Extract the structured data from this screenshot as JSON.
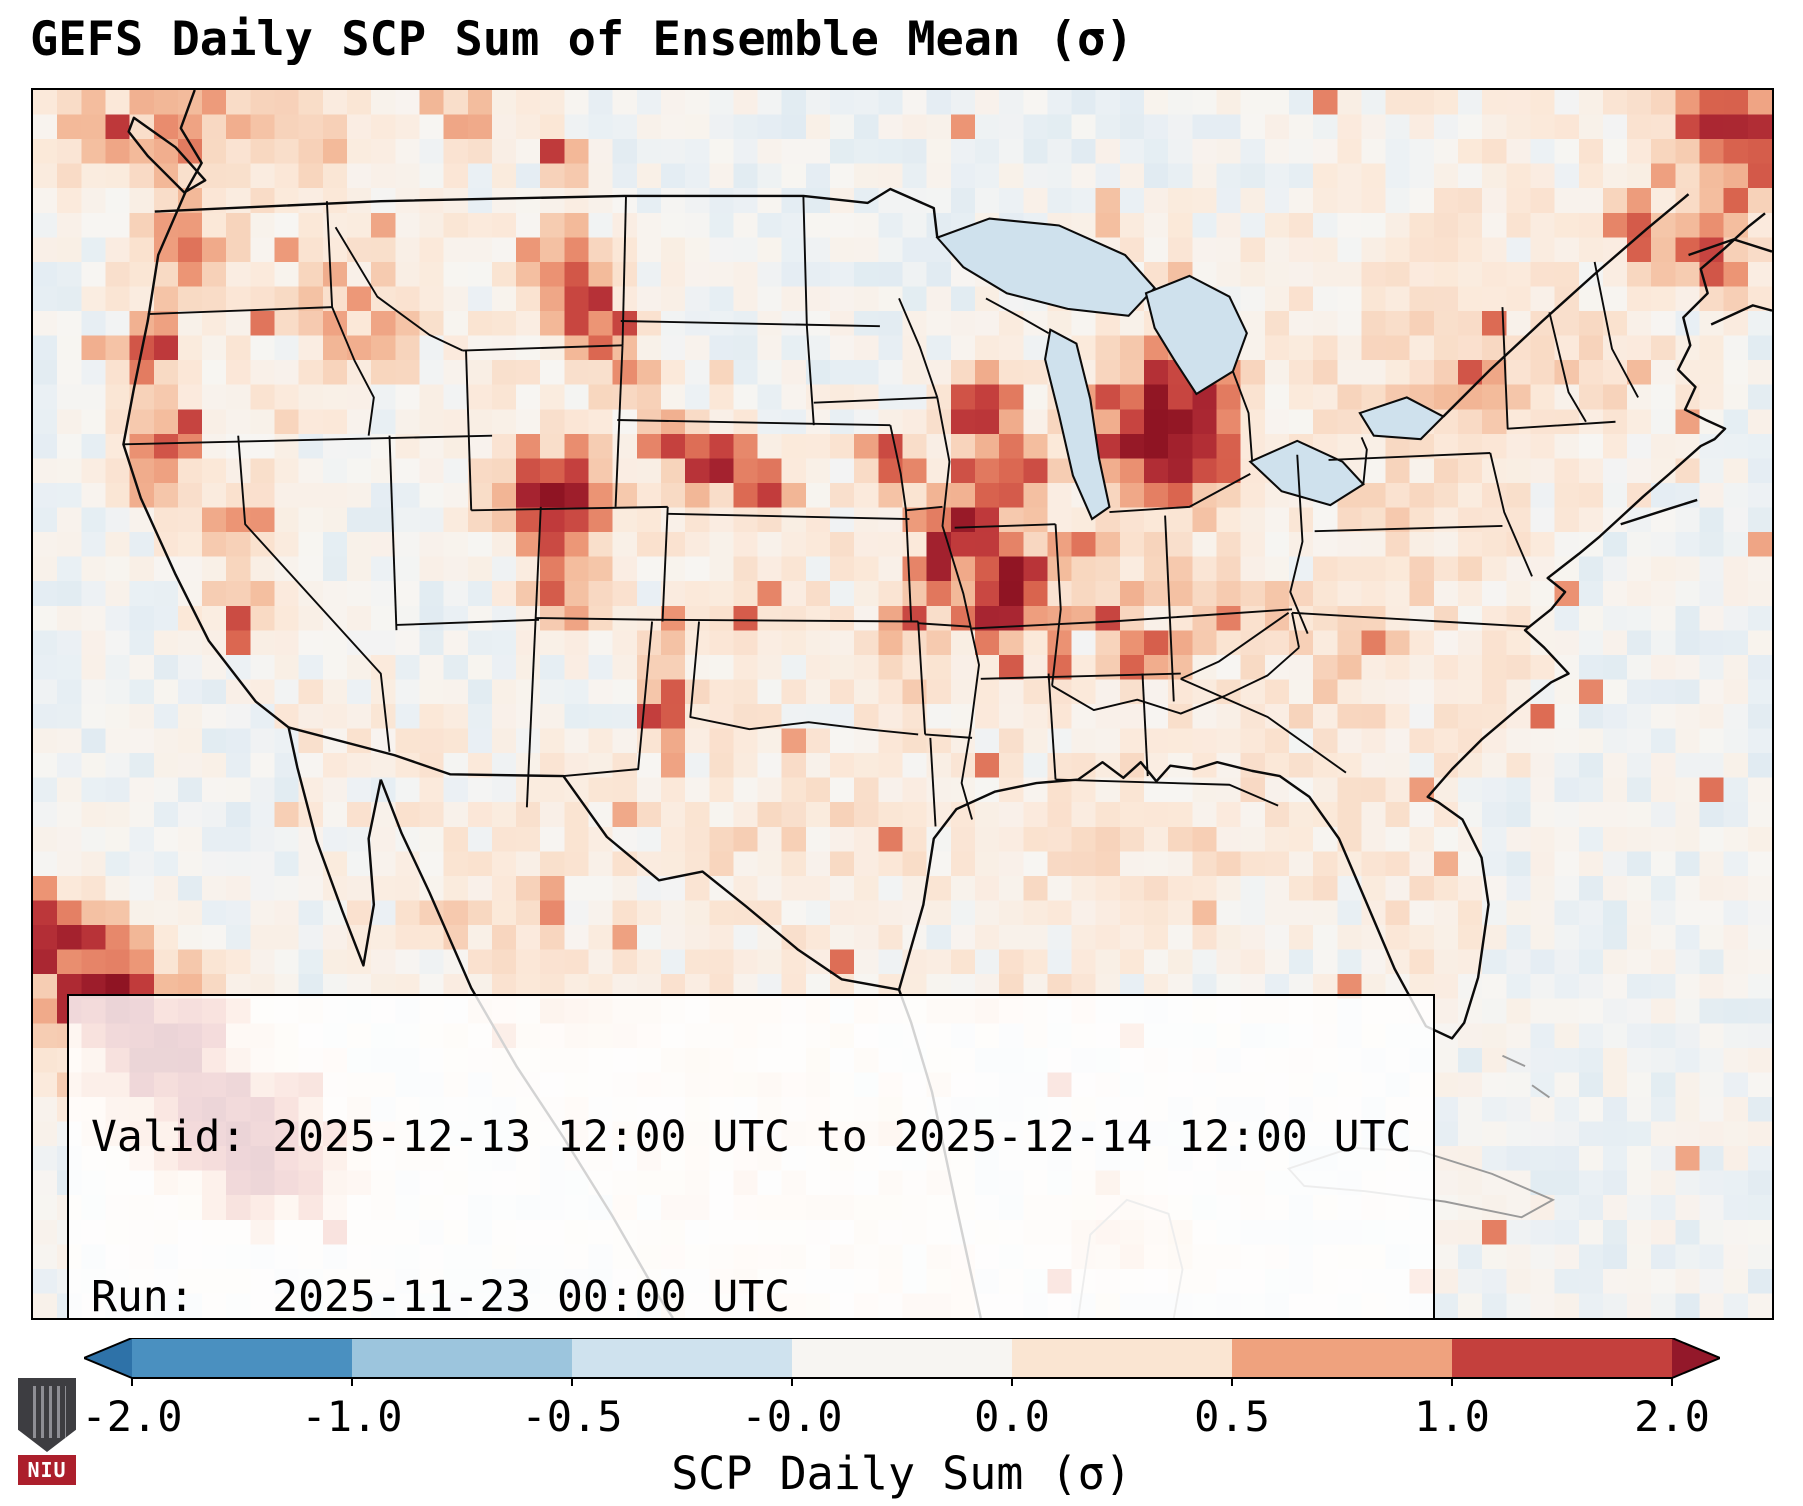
{
  "figure": {
    "title": "GEFS Daily SCP Sum of Ensemble Mean (σ)",
    "background": "#ffffff"
  },
  "info_box": {
    "valid_line": "Valid: 2025-12-13 12:00 UTC to 2025-12-14 12:00 UTC",
    "run_line": "Run:   2025-11-23 00:00 UTC"
  },
  "logo": {
    "text": "NIU",
    "banner_color": "#ac1f2c",
    "shield_color": "#3d3d41"
  },
  "chart_data": {
    "type": "heatmap",
    "title": "GEFS Daily SCP Sum of Ensemble Mean (σ)",
    "valid": "2025-12-13 12:00 UTC to 2025-12-14 12:00 UTC",
    "run": "2025-11-23 00:00 UTC",
    "colorbar": {
      "label": "SCP Daily Sum (σ)",
      "ticks": [
        "-2.0",
        "-1.0",
        "-0.5",
        "-0.0",
        "0.0",
        "0.5",
        "1.0",
        "2.0"
      ],
      "segment_colors": [
        "#4a90c0",
        "#9cc5dd",
        "#cfe2ee",
        "#f7f5f2",
        "#fae5d2",
        "#efa27e",
        "#c4403d"
      ],
      "under_color": "#2e72a8",
      "over_color": "#93182a",
      "extend": "both",
      "orientation": "horizontal",
      "range_sigma": [
        -2.0,
        2.0
      ]
    },
    "style": {
      "water_color": "#cfe1ed",
      "boundary_color": "#0b0b0b",
      "foreign_boundary_color": "#9a9a9a",
      "frame_color": "#000000",
      "info_box_bg": "rgba(255,255,255,0.82)"
    },
    "colormap_stops": [
      [
        -2.6,
        "#27679e"
      ],
      [
        -2.0,
        "#3a7cb0"
      ],
      [
        -1.2,
        "#7fb2d4"
      ],
      [
        -0.6,
        "#b9d6e7"
      ],
      [
        -0.25,
        "#d3e4ee"
      ],
      [
        -0.05,
        "#eaf0f4"
      ],
      [
        0.02,
        "#f7f5f2"
      ],
      [
        0.25,
        "#fbe9da"
      ],
      [
        0.5,
        "#f8d7c0"
      ],
      [
        0.8,
        "#f3ba9a"
      ],
      [
        1.1,
        "#ec9575"
      ],
      [
        1.5,
        "#da654f"
      ],
      [
        1.9,
        "#c23c3c"
      ],
      [
        2.3,
        "#a82531"
      ],
      [
        2.8,
        "#8f1423"
      ]
    ],
    "grid": {
      "cols": 72,
      "rows": 50,
      "noise_seed": 11,
      "ocean_value": -0.35,
      "land_value": 0.18,
      "noise_base": 0.13,
      "noise_scale": 0.5,
      "spike_threshold": 0.96,
      "spike_max": 1.3
    },
    "land_polygon": [
      [
        0.093,
        0
      ],
      [
        0.085,
        0.031
      ],
      [
        0.097,
        0.059
      ],
      [
        0.088,
        0.082
      ],
      [
        0.072,
        0.134
      ],
      [
        0.066,
        0.188
      ],
      [
        0.058,
        0.243
      ],
      [
        0.052,
        0.289
      ],
      [
        0.062,
        0.332
      ],
      [
        0.082,
        0.395
      ],
      [
        0.101,
        0.448
      ],
      [
        0.128,
        0.498
      ],
      [
        0.147,
        0.519
      ],
      [
        0.152,
        0.552
      ],
      [
        0.163,
        0.611
      ],
      [
        0.178,
        0.669
      ],
      [
        0.19,
        0.713
      ],
      [
        0.196,
        0.663
      ],
      [
        0.193,
        0.61
      ],
      [
        0.2,
        0.562
      ],
      [
        0.212,
        0.605
      ],
      [
        0.228,
        0.653
      ],
      [
        0.252,
        0.731
      ],
      [
        0.278,
        0.795
      ],
      [
        0.305,
        0.853
      ],
      [
        0.333,
        0.917
      ],
      [
        0.36,
        0.983
      ],
      [
        0.368,
        1
      ],
      [
        0.545,
        1
      ],
      [
        0.531,
        0.909
      ],
      [
        0.517,
        0.816
      ],
      [
        0.505,
        0.76
      ],
      [
        0.498,
        0.733
      ],
      [
        0.512,
        0.663
      ],
      [
        0.518,
        0.61
      ],
      [
        0.531,
        0.586
      ],
      [
        0.553,
        0.571
      ],
      [
        0.577,
        0.564
      ],
      [
        0.601,
        0.561
      ],
      [
        0.615,
        0.547
      ],
      [
        0.627,
        0.56
      ],
      [
        0.637,
        0.547
      ],
      [
        0.646,
        0.563
      ],
      [
        0.654,
        0.55
      ],
      [
        0.668,
        0.553
      ],
      [
        0.681,
        0.547
      ],
      [
        0.701,
        0.554
      ],
      [
        0.717,
        0.559
      ],
      [
        0.734,
        0.576
      ],
      [
        0.751,
        0.61
      ],
      [
        0.766,
        0.659
      ],
      [
        0.783,
        0.716
      ],
      [
        0.801,
        0.762
      ],
      [
        0.816,
        0.772
      ],
      [
        0.823,
        0.759
      ],
      [
        0.831,
        0.723
      ],
      [
        0.837,
        0.663
      ],
      [
        0.833,
        0.625
      ],
      [
        0.822,
        0.594
      ],
      [
        0.808,
        0.58
      ],
      [
        0.802,
        0.576
      ],
      [
        0.816,
        0.553
      ],
      [
        0.833,
        0.529
      ],
      [
        0.853,
        0.505
      ],
      [
        0.873,
        0.482
      ],
      [
        0.883,
        0.475
      ],
      [
        0.869,
        0.454
      ],
      [
        0.858,
        0.44
      ],
      [
        0.873,
        0.423
      ],
      [
        0.881,
        0.409
      ],
      [
        0.871,
        0.397
      ],
      [
        0.889,
        0.378
      ],
      [
        0.901,
        0.363
      ],
      [
        0.913,
        0.348
      ],
      [
        0.926,
        0.331
      ],
      [
        0.941,
        0.313
      ],
      [
        0.959,
        0.29
      ],
      [
        0.967,
        0.284
      ],
      [
        0.973,
        0.276
      ],
      [
        0.962,
        0.269
      ],
      [
        0.95,
        0.26
      ],
      [
        0.956,
        0.242
      ],
      [
        0.946,
        0.228
      ],
      [
        0.953,
        0.208
      ],
      [
        0.949,
        0.185
      ],
      [
        0.963,
        0.165
      ],
      [
        0.959,
        0.146
      ],
      [
        0.973,
        0.129
      ],
      [
        0.986,
        0.112
      ],
      [
        0.996,
        0.1
      ],
      [
        1,
        0.096
      ],
      [
        1,
        0
      ]
    ],
    "regions": [
      {
        "n": "canada-prairies-light",
        "t": "cool",
        "x": 0.45,
        "y": 0.057,
        "rx": 0.15,
        "ry": 0.07,
        "v": -0.15
      },
      {
        "n": "canada-top-center-light",
        "t": "cool",
        "x": 0.62,
        "y": 0.028,
        "rx": 0.12,
        "ry": 0.05,
        "v": -0.15
      },
      {
        "n": "minnesota-dakotas-light",
        "t": "cool",
        "x": 0.47,
        "y": 0.17,
        "rx": 0.08,
        "ry": 0.07,
        "v": -0.2
      },
      {
        "n": "great-basin-light",
        "t": "cool",
        "x": 0.2,
        "y": 0.368,
        "rx": 0.07,
        "ry": 0.08,
        "v": -0.15
      },
      {
        "n": "four-corners-light",
        "t": "cool",
        "x": 0.29,
        "y": 0.467,
        "rx": 0.06,
        "ry": 0.06,
        "v": -0.1
      },
      {
        "n": "gulf-of-mexico-light",
        "t": "cool",
        "x": 0.62,
        "y": 0.792,
        "rx": 0.09,
        "ry": 0.05,
        "v": -0.3
      },
      {
        "n": "atlantic-blue-patch-north",
        "t": "cool",
        "x": 0.915,
        "y": 0.438,
        "rx": 0.025,
        "ry": 0.04,
        "v": -1.15
      },
      {
        "n": "atlantic-blue-patch-south",
        "t": "cool",
        "x": 0.845,
        "y": 0.608,
        "rx": 0.018,
        "ry": 0.035,
        "v": -1.0
      },
      {
        "n": "southwest-corner-light",
        "t": "cool",
        "x": 0.034,
        "y": 0.959,
        "rx": 0.05,
        "ry": 0.035,
        "v": 0.0
      },
      {
        "n": "bc-coast-scatter",
        "t": "hot",
        "x": 0.09,
        "y": 0.035,
        "rx": 0.07,
        "ry": 0.05,
        "v": 1.1
      },
      {
        "n": "washington-coast",
        "t": "hot",
        "x": 0.085,
        "y": 0.127,
        "rx": 0.03,
        "ry": 0.05,
        "v": 0.9
      },
      {
        "n": "oregon-red-spot",
        "t": "hot",
        "x": 0.07,
        "y": 0.212,
        "rx": 0.018,
        "ry": 0.028,
        "v": 1.5
      },
      {
        "n": "norcal-coast",
        "t": "hot",
        "x": 0.075,
        "y": 0.297,
        "rx": 0.022,
        "ry": 0.045,
        "v": 1.2
      },
      {
        "n": "sierra-nevada",
        "t": "hot",
        "x": 0.115,
        "y": 0.354,
        "rx": 0.018,
        "ry": 0.04,
        "v": 1.0
      },
      {
        "n": "socal-coast",
        "t": "hot",
        "x": 0.125,
        "y": 0.424,
        "rx": 0.025,
        "ry": 0.03,
        "v": 0.8
      },
      {
        "n": "idaho-scatter",
        "t": "hot",
        "x": 0.185,
        "y": 0.184,
        "rx": 0.035,
        "ry": 0.045,
        "v": 0.8
      },
      {
        "n": "montana-top-spot-west",
        "t": "hot",
        "x": 0.25,
        "y": 0.028,
        "rx": 0.015,
        "ry": 0.018,
        "v": 1.7
      },
      {
        "n": "montana-top-spot-east",
        "t": "hot",
        "x": 0.305,
        "y": 0.054,
        "rx": 0.012,
        "ry": 0.015,
        "v": 2.0
      },
      {
        "n": "montana-streak-north",
        "t": "hot",
        "x": 0.305,
        "y": 0.141,
        "rx": 0.018,
        "ry": 0.028,
        "v": 1.6
      },
      {
        "n": "montana-streak-mid",
        "t": "hot",
        "x": 0.318,
        "y": 0.17,
        "rx": 0.02,
        "ry": 0.032,
        "v": 1.9
      },
      {
        "n": "montana-streak-south",
        "t": "hot",
        "x": 0.33,
        "y": 0.2,
        "rx": 0.018,
        "ry": 0.025,
        "v": 1.7
      },
      {
        "n": "bighorn-spot",
        "t": "hot",
        "x": 0.338,
        "y": 0.233,
        "rx": 0.015,
        "ry": 0.02,
        "v": 1.6
      },
      {
        "n": "wyoming-colorado-blob",
        "t": "hot",
        "x": 0.3,
        "y": 0.335,
        "rx": 0.028,
        "ry": 0.04,
        "v": 2.7
      },
      {
        "n": "colorado-front-range",
        "t": "hot",
        "x": 0.31,
        "y": 0.403,
        "rx": 0.022,
        "ry": 0.028,
        "v": 1.4
      },
      {
        "n": "nebraska-streak-west",
        "t": "hot",
        "x": 0.365,
        "y": 0.29,
        "rx": 0.016,
        "ry": 0.018,
        "v": 1.7
      },
      {
        "n": "nebraska-streak-mid",
        "t": "hot",
        "x": 0.39,
        "y": 0.304,
        "rx": 0.022,
        "ry": 0.022,
        "v": 2.2
      },
      {
        "n": "nebraska-streak-east",
        "t": "hot",
        "x": 0.42,
        "y": 0.322,
        "rx": 0.018,
        "ry": 0.018,
        "v": 2.0
      },
      {
        "n": "iowa-spot",
        "t": "hot",
        "x": 0.495,
        "y": 0.304,
        "rx": 0.018,
        "ry": 0.02,
        "v": 1.8
      },
      {
        "n": "wisconsin-spot-north",
        "t": "hot",
        "x": 0.545,
        "y": 0.262,
        "rx": 0.022,
        "ry": 0.028,
        "v": 1.8
      },
      {
        "n": "wisconsin-spot-south",
        "t": "hot",
        "x": 0.56,
        "y": 0.318,
        "rx": 0.022,
        "ry": 0.028,
        "v": 2.1
      },
      {
        "n": "michigan-blob",
        "t": "hot",
        "x": 0.652,
        "y": 0.276,
        "rx": 0.04,
        "ry": 0.055,
        "v": 2.9
      },
      {
        "n": "illinois-blob",
        "t": "hot",
        "x": 0.56,
        "y": 0.41,
        "rx": 0.026,
        "ry": 0.04,
        "v": 2.7
      },
      {
        "n": "missouri-streak-northeast",
        "t": "hot",
        "x": 0.533,
        "y": 0.361,
        "rx": 0.022,
        "ry": 0.03,
        "v": 2.6
      },
      {
        "n": "missouri-streak-center",
        "t": "hot",
        "x": 0.52,
        "y": 0.396,
        "rx": 0.02,
        "ry": 0.025,
        "v": 2.4
      },
      {
        "n": "missouri-streak-southwest",
        "t": "hot",
        "x": 0.503,
        "y": 0.438,
        "rx": 0.018,
        "ry": 0.02,
        "v": 1.5
      },
      {
        "n": "midwest-base",
        "t": "hot",
        "x": 0.64,
        "y": 0.396,
        "rx": 0.06,
        "ry": 0.06,
        "v": 0.4
      },
      {
        "n": "indiana-north-spot",
        "t": "hot",
        "x": 0.6,
        "y": 0.382,
        "rx": 0.016,
        "ry": 0.02,
        "v": 1.3
      },
      {
        "n": "indiana-kentucky-spot",
        "t": "hot",
        "x": 0.62,
        "y": 0.424,
        "rx": 0.016,
        "ry": 0.02,
        "v": 1.5
      },
      {
        "n": "kentucky-spot",
        "t": "hot",
        "x": 0.64,
        "y": 0.46,
        "rx": 0.02,
        "ry": 0.02,
        "v": 1.7
      },
      {
        "n": "ohio-valley-scatter",
        "t": "hot",
        "x": 0.69,
        "y": 0.424,
        "rx": 0.04,
        "ry": 0.04,
        "v": 0.8
      },
      {
        "n": "appalachia-scatter",
        "t": "hot",
        "x": 0.76,
        "y": 0.467,
        "rx": 0.05,
        "ry": 0.06,
        "v": 0.5
      },
      {
        "n": "texas-panhandle-streak",
        "t": "hot",
        "x": 0.365,
        "y": 0.502,
        "rx": 0.012,
        "ry": 0.04,
        "v": 2.2
      },
      {
        "n": "texas-base",
        "t": "hot",
        "x": 0.43,
        "y": 0.608,
        "rx": 0.12,
        "ry": 0.08,
        "v": 0.32
      },
      {
        "n": "plains-base",
        "t": "hot",
        "x": 0.42,
        "y": 0.41,
        "rx": 0.09,
        "ry": 0.09,
        "v": 0.22
      },
      {
        "n": "arkansas-base",
        "t": "hot",
        "x": 0.51,
        "y": 0.481,
        "rx": 0.04,
        "ry": 0.04,
        "v": 0.35
      },
      {
        "n": "southeast-base",
        "t": "hot",
        "x": 0.65,
        "y": 0.608,
        "rx": 0.1,
        "ry": 0.09,
        "v": 0.35
      },
      {
        "n": "carolinas-base",
        "t": "hot",
        "x": 0.76,
        "y": 0.509,
        "rx": 0.06,
        "ry": 0.05,
        "v": 0.35
      },
      {
        "n": "east-coast-base",
        "t": "hot",
        "x": 0.8,
        "y": 0.396,
        "rx": 0.05,
        "ry": 0.07,
        "v": 0.35
      },
      {
        "n": "pa-ny-base",
        "t": "hot",
        "x": 0.79,
        "y": 0.332,
        "rx": 0.05,
        "ry": 0.05,
        "v": 0.45
      },
      {
        "n": "northeast-scatter",
        "t": "hot",
        "x": 0.81,
        "y": 0.24,
        "rx": 0.08,
        "ry": 0.07,
        "v": 0.55
      },
      {
        "n": "new-england-coast",
        "t": "hot",
        "x": 0.9,
        "y": 0.226,
        "rx": 0.045,
        "ry": 0.045,
        "v": 0.6
      },
      {
        "n": "adirondack-spot",
        "t": "hot",
        "x": 0.83,
        "y": 0.226,
        "rx": 0.016,
        "ry": 0.02,
        "v": 1.2
      },
      {
        "n": "st-lawrence-spot",
        "t": "hot",
        "x": 0.929,
        "y": 0.115,
        "rx": 0.025,
        "ry": 0.03,
        "v": 1.3
      },
      {
        "n": "maritimes-spot",
        "t": "hot",
        "x": 0.965,
        "y": 0.135,
        "rx": 0.025,
        "ry": 0.03,
        "v": 1.5
      },
      {
        "n": "quebec-corner-blob",
        "t": "hot",
        "x": 0.98,
        "y": 0.034,
        "rx": 0.04,
        "ry": 0.045,
        "v": 2.0
      },
      {
        "n": "florida-base",
        "t": "hot",
        "x": 0.795,
        "y": 0.679,
        "rx": 0.025,
        "ry": 0.055,
        "v": 0.3
      },
      {
        "n": "gulf-coast-patch-west",
        "t": "hot",
        "x": 0.56,
        "y": 0.735,
        "rx": 0.04,
        "ry": 0.03,
        "v": 0.4
      },
      {
        "n": "gulf-coast-patch-east",
        "t": "hot",
        "x": 0.64,
        "y": 0.665,
        "rx": 0.04,
        "ry": 0.03,
        "v": 0.3
      },
      {
        "n": "louisiana-coast-patch",
        "t": "hot",
        "x": 0.585,
        "y": 0.651,
        "rx": 0.03,
        "ry": 0.025,
        "v": 0.35
      },
      {
        "n": "mexico-interior-patch",
        "t": "hot",
        "x": 0.3,
        "y": 0.735,
        "rx": 0.05,
        "ry": 0.06,
        "v": 0.45
      },
      {
        "n": "mexico-north-patch",
        "t": "hot",
        "x": 0.25,
        "y": 0.665,
        "rx": 0.05,
        "ry": 0.06,
        "v": 0.35
      },
      {
        "n": "yucatan-patch",
        "t": "hot",
        "x": 0.63,
        "y": 0.933,
        "rx": 0.04,
        "ry": 0.04,
        "v": 0.4
      },
      {
        "n": "pacific-band-nw",
        "t": "hot",
        "x": 0.017,
        "y": 0.692,
        "rx": 0.03,
        "ry": 0.035,
        "v": 2.3
      },
      {
        "n": "pacific-band-a",
        "t": "hot",
        "x": 0.045,
        "y": 0.74,
        "rx": 0.035,
        "ry": 0.04,
        "v": 2.8
      },
      {
        "n": "pacific-band-b",
        "t": "hot",
        "x": 0.077,
        "y": 0.789,
        "rx": 0.04,
        "ry": 0.045,
        "v": 2.8
      },
      {
        "n": "pacific-band-c",
        "t": "hot",
        "x": 0.108,
        "y": 0.834,
        "rx": 0.04,
        "ry": 0.045,
        "v": 2.7
      },
      {
        "n": "pacific-band-se",
        "t": "hot",
        "x": 0.137,
        "y": 0.874,
        "rx": 0.04,
        "ry": 0.04,
        "v": 2.4
      }
    ]
  }
}
